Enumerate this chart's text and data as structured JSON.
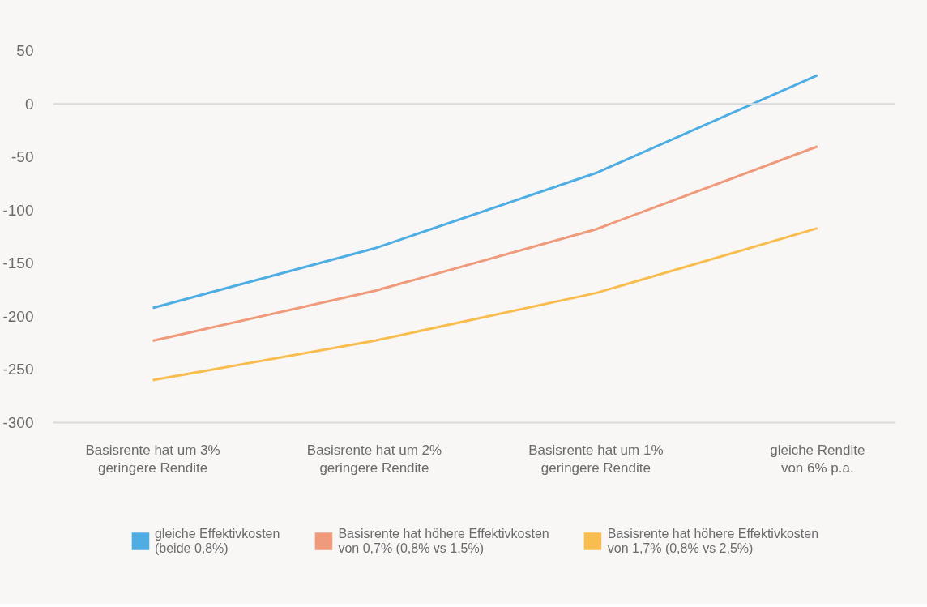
{
  "chart_data": {
    "type": "line",
    "categories": [
      "Basisrente hat um 3%\ngeringere Rendite",
      "Basisrente hat um 2%\ngeringere Rendite",
      "Basisrente hat um 1%\ngeringere Rendite",
      "gleiche Rendite\nvon 6% p.a."
    ],
    "series": [
      {
        "name": "gleiche Effektivkosten\n(beide 0,8%)",
        "color": "#4eaee3",
        "values": [
          -192,
          -136,
          -65,
          27
        ]
      },
      {
        "name": "Basisrente hat höhere Effektivkosten\nvon 0,7% (0,8% vs 1,5%)",
        "color": "#f09a7c",
        "values": [
          -223,
          -176,
          -118,
          -40
        ]
      },
      {
        "name": "Basisrente hat höhere Effektivkosten\nvon 1,7% (0,8% vs 2,5%)",
        "color": "#f9bd4f",
        "values": [
          -260,
          -223,
          -178,
          -117
        ]
      }
    ],
    "ylim": [
      -300,
      50
    ],
    "yticks": [
      50,
      0,
      -50,
      -100,
      -150,
      -200,
      -250,
      -300
    ],
    "ref_lines": [
      {
        "axis": "y",
        "value": 0,
        "color": "#d9d9d9"
      }
    ],
    "grid": false,
    "legend": "bottom",
    "marker": "none",
    "line_style": "solid"
  }
}
